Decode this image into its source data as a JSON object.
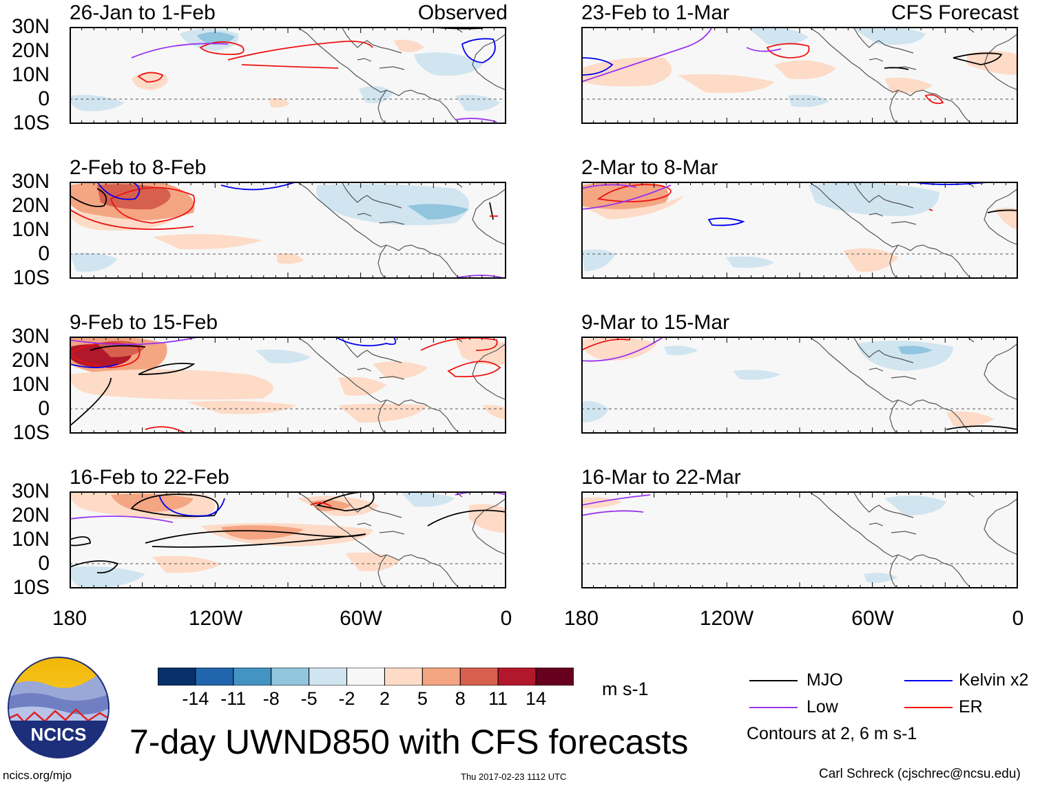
{
  "panels_left": [
    {
      "title": "26-Jan to 1-Feb",
      "tag": "Observed"
    },
    {
      "title": "2-Feb to 8-Feb"
    },
    {
      "title": "9-Feb to 15-Feb"
    },
    {
      "title": "16-Feb to 22-Feb"
    }
  ],
  "panels_right": [
    {
      "title": "23-Feb to 1-Mar",
      "tag": "CFS Forecast"
    },
    {
      "title": "2-Mar to 8-Mar"
    },
    {
      "title": "9-Mar to 15-Mar"
    },
    {
      "title": "16-Mar to 22-Mar"
    }
  ],
  "lat_labels": [
    "30N",
    "20N",
    "10N",
    "0",
    "10S"
  ],
  "lon_labels": [
    "180",
    "120W",
    "60W",
    "0"
  ],
  "colorbar": {
    "ticks": [
      "-14",
      "-11",
      "-8",
      "-5",
      "-2",
      "2",
      "5",
      "8",
      "11",
      "14"
    ],
    "colors": [
      "#08306b",
      "#2166ac",
      "#4393c3",
      "#92c5de",
      "#d1e5f0",
      "#f7f7f7",
      "#fddbc7",
      "#f4a582",
      "#d6604d",
      "#b2182b",
      "#67001f"
    ],
    "units": "m s-1"
  },
  "legend": {
    "items": [
      {
        "label": "MJO",
        "color": "#000000"
      },
      {
        "label": "Kelvin x2",
        "color": "#0000ee"
      },
      {
        "label": "Low",
        "color": "#9933ee"
      },
      {
        "label": "ER",
        "color": "#ee1111"
      }
    ],
    "note": "Contours at 2, 6 m s-1"
  },
  "title": "7-day UWND850 with CFS forecasts",
  "footer": {
    "website": "ncics.org/mjo",
    "timestamp": "Thu 2017-02-23 1112 UTC",
    "author": "Carl Schreck (cjschrec@ncsu.edu)"
  },
  "logo": {
    "text": "NCICS"
  }
}
